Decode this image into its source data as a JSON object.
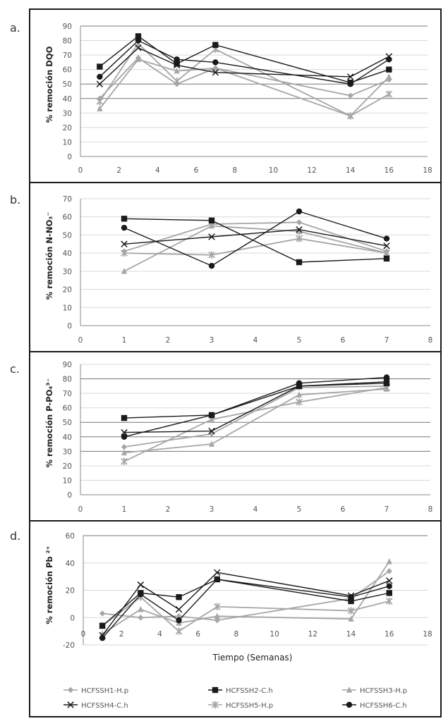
{
  "figure": {
    "x_axis_title": "Tiempo (Semanas)",
    "legend": [
      {
        "name": "HCFSSH1-H.p",
        "marker": "diamond",
        "color": "#a6a6a6"
      },
      {
        "name": "HCFSSH2-C.h",
        "marker": "square",
        "color": "#1a1a1a"
      },
      {
        "name": "HCFSSH3-H.p",
        "marker": "triangle",
        "color": "#a6a6a6"
      },
      {
        "name": "HCFSSH4-C.h",
        "marker": "x",
        "color": "#1a1a1a"
      },
      {
        "name": "HCFSSH5-H.p",
        "marker": "star",
        "color": "#a6a6a6"
      },
      {
        "name": "HCFSSH6-C.h",
        "marker": "circle",
        "color": "#1a1a1a"
      }
    ]
  },
  "chart_data": [
    {
      "panel": "a.",
      "type": "line",
      "ylabel": "% remoción DQO",
      "xlabel": "",
      "xlim": [
        0,
        18
      ],
      "xticks": [
        0,
        2,
        4,
        6,
        8,
        10,
        12,
        14,
        16,
        18
      ],
      "ylim": [
        0,
        90
      ],
      "yticks": [
        0,
        10,
        20,
        30,
        40,
        50,
        60,
        70,
        80,
        90
      ],
      "dark_gridlines": [
        40,
        50,
        90
      ],
      "x": [
        1,
        3,
        5,
        7,
        14,
        16
      ],
      "series": [
        {
          "name": "HCFSSH1-H.p",
          "values": [
            40,
            68,
            50,
            61,
            42,
            53
          ]
        },
        {
          "name": "HCFSSH2-C.h",
          "values": [
            62,
            83,
            64,
            77,
            51,
            60
          ]
        },
        {
          "name": "HCFSSH3-H.p",
          "values": [
            33,
            67,
            59,
            61,
            28,
            55
          ]
        },
        {
          "name": "HCFSSH4-C.h",
          "values": [
            50,
            75,
            63,
            58,
            55,
            69
          ]
        },
        {
          "name": "HCFSSH5-H.p",
          "values": [
            38,
            78,
            52,
            74,
            28,
            43
          ]
        },
        {
          "name": "HCFSSH6-C.h",
          "values": [
            55,
            80,
            67,
            65,
            50,
            67
          ]
        }
      ]
    },
    {
      "panel": "b.",
      "type": "line",
      "ylabel": "% remoción N-NO₃⁻",
      "xlabel": "",
      "xlim": [
        0,
        8
      ],
      "xticks": [
        0,
        1,
        2,
        3,
        4,
        5,
        6,
        7,
        8
      ],
      "ylim": [
        0,
        70
      ],
      "yticks": [
        0,
        10,
        20,
        30,
        40,
        50,
        60,
        70
      ],
      "dark_gridlines": [],
      "x": [
        1,
        3,
        5,
        7
      ],
      "series": [
        {
          "name": "HCFSSH1-H.p",
          "values": [
            41,
            56,
            57,
            41
          ]
        },
        {
          "name": "HCFSSH2-C.h",
          "values": [
            59,
            58,
            35,
            37
          ]
        },
        {
          "name": "HCFSSH3-H.p",
          "values": [
            30,
            55,
            52,
            40
          ]
        },
        {
          "name": "HCFSSH4-C.h",
          "values": [
            45,
            49,
            53,
            44
          ]
        },
        {
          "name": "HCFSSH5-H.p",
          "values": [
            40,
            39,
            48,
            40
          ]
        },
        {
          "name": "HCFSSH6-C.h",
          "values": [
            54,
            33,
            63,
            48
          ]
        }
      ]
    },
    {
      "panel": "c.",
      "type": "line",
      "ylabel": "% remoción P-PO₄³⁻",
      "xlabel": "",
      "xlim": [
        0,
        8
      ],
      "xticks": [
        0,
        1,
        2,
        3,
        4,
        5,
        6,
        7,
        8
      ],
      "ylim": [
        0,
        90
      ],
      "yticks": [
        0,
        10,
        20,
        30,
        40,
        50,
        60,
        70,
        80,
        90
      ],
      "dark_gridlines": [
        30,
        40,
        50,
        80
      ],
      "x": [
        1,
        3,
        5,
        7
      ],
      "series": [
        {
          "name": "HCFSSH1-H.p",
          "values": [
            33,
            42,
            74,
            75
          ]
        },
        {
          "name": "HCFSSH2-C.h",
          "values": [
            53,
            55,
            75,
            77
          ]
        },
        {
          "name": "HCFSSH3-H.p",
          "values": [
            29,
            35,
            69,
            73
          ]
        },
        {
          "name": "HCFSSH4-C.h",
          "values": [
            43,
            44,
            75,
            78
          ]
        },
        {
          "name": "HCFSSH5-H.p",
          "values": [
            23,
            52,
            64,
            74
          ]
        },
        {
          "name": "HCFSSH6-C.h",
          "values": [
            40,
            55,
            77,
            81
          ]
        }
      ]
    },
    {
      "panel": "d.",
      "type": "line",
      "ylabel": "% remoción Pb ²⁺",
      "xlabel": "Tiempo (Semanas)",
      "xlim": [
        0,
        18
      ],
      "xticks": [
        0,
        2,
        4,
        6,
        8,
        10,
        12,
        14,
        16,
        18
      ],
      "ylim": [
        -20,
        60
      ],
      "yticks": [
        -20,
        0,
        20,
        40,
        60
      ],
      "dark_gridlines": [
        60
      ],
      "x": [
        1,
        3,
        5,
        7,
        14,
        16
      ],
      "series": [
        {
          "name": "HCFSSH1-H.p",
          "values": [
            3,
            0,
            1,
            -2,
            14,
            34
          ]
        },
        {
          "name": "HCFSSH2-C.h",
          "values": [
            -6,
            18,
            15,
            28,
            12,
            18
          ]
        },
        {
          "name": "HCFSSH3-H.p",
          "values": [
            -12,
            6,
            -4,
            1,
            -1,
            41
          ]
        },
        {
          "name": "HCFSSH4-C.h",
          "values": [
            -13,
            24,
            6,
            33,
            16,
            27
          ]
        },
        {
          "name": "HCFSSH5-H.p",
          "values": [
            -6,
            15,
            -10,
            8,
            5,
            12
          ]
        },
        {
          "name": "HCFSSH6-C.h",
          "values": [
            -15,
            17,
            -2,
            28,
            15,
            23
          ]
        }
      ]
    }
  ]
}
